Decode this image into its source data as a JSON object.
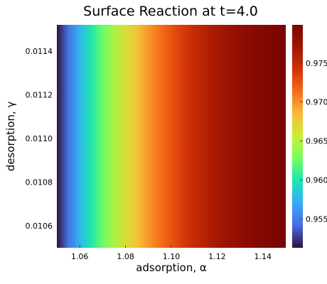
{
  "chart_data": {
    "type": "heatmap",
    "title": "Surface Reaction at t=4.0",
    "xlabel": "adsorption, α",
    "ylabel": "desorption, γ",
    "x_range": [
      1.05,
      1.15
    ],
    "y_range": [
      0.0105,
      0.01152
    ],
    "x_ticks": [
      "1.06",
      "1.08",
      "1.10",
      "1.12",
      "1.14"
    ],
    "y_ticks": [
      "0.0106",
      "0.0108",
      "0.0110",
      "0.0112",
      "0.0114"
    ],
    "x_tick_values": [
      1.06,
      1.08,
      1.1,
      1.12,
      1.14
    ],
    "y_tick_values": [
      0.0106,
      0.0108,
      0.011,
      0.0112,
      0.0114
    ],
    "colorbar": {
      "range": [
        0.9513,
        0.9799
      ],
      "ticks": [
        "0.955",
        "0.960",
        "0.965",
        "0.970",
        "0.975"
      ],
      "tick_values": [
        0.955,
        0.96,
        0.965,
        0.97,
        0.975
      ],
      "colormap": "turbo"
    },
    "description_of_values": "value increases with adsorption alpha; nearly constant along desorption gamma",
    "column_values": [
      {
        "x": 1.05,
        "value": 0.9513
      },
      {
        "x": 1.055,
        "value": 0.9545
      },
      {
        "x": 1.06,
        "value": 0.9575
      },
      {
        "x": 1.065,
        "value": 0.96
      },
      {
        "x": 1.07,
        "value": 0.9625
      },
      {
        "x": 1.075,
        "value": 0.9645
      },
      {
        "x": 1.08,
        "value": 0.9665
      },
      {
        "x": 1.085,
        "value": 0.968
      },
      {
        "x": 1.09,
        "value": 0.9698
      },
      {
        "x": 1.095,
        "value": 0.9712
      },
      {
        "x": 1.1,
        "value": 0.9725
      },
      {
        "x": 1.105,
        "value": 0.9737
      },
      {
        "x": 1.11,
        "value": 0.9748
      },
      {
        "x": 1.115,
        "value": 0.9758
      },
      {
        "x": 1.12,
        "value": 0.9767
      },
      {
        "x": 1.125,
        "value": 0.9775
      },
      {
        "x": 1.13,
        "value": 0.9782
      },
      {
        "x": 1.135,
        "value": 0.9788
      },
      {
        "x": 1.14,
        "value": 0.9793
      },
      {
        "x": 1.145,
        "value": 0.9797
      },
      {
        "x": 1.15,
        "value": 0.9799
      }
    ]
  }
}
